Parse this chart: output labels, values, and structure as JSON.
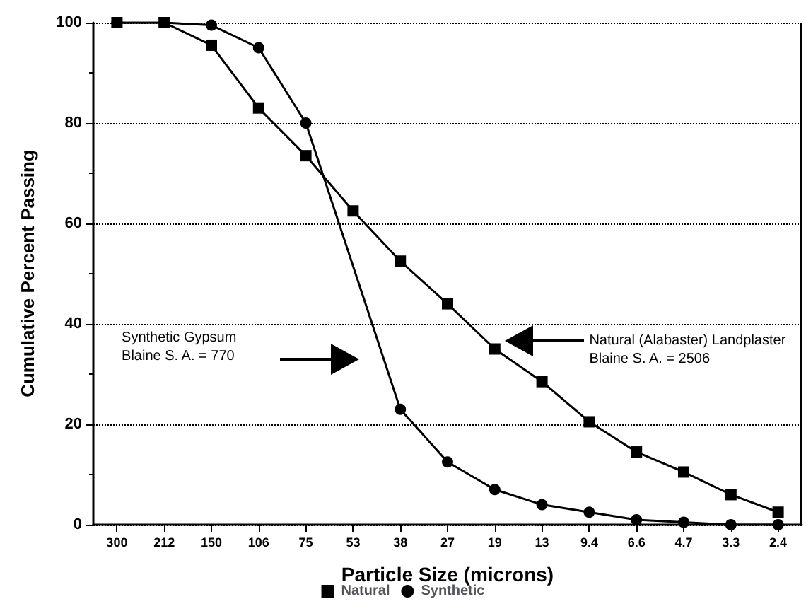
{
  "chart_data": {
    "type": "line",
    "xlabel": "Particle Size (microns)",
    "ylabel": "Cumulative Percent Passing",
    "categories": [
      "300",
      "212",
      "150",
      "106",
      "75",
      "53",
      "38",
      "27",
      "19",
      "13",
      "9.4",
      "6.6",
      "4.7",
      "3.3",
      "2.4"
    ],
    "series": [
      {
        "name": "Natural",
        "color": "#000000",
        "marker": "square",
        "values": [
          100,
          100,
          95.5,
          83,
          73.5,
          62.5,
          52.5,
          44,
          35,
          28.5,
          20.5,
          14.5,
          10.5,
          6,
          2.5
        ]
      },
      {
        "name": "Synthetic",
        "color": "#000000",
        "marker": "circle",
        "values": [
          100,
          100,
          99.5,
          95,
          80,
          null,
          23,
          12.5,
          7,
          4,
          2.5,
          1,
          0.5,
          0,
          0
        ]
      }
    ],
    "ylim": [
      0,
      100
    ],
    "yticks": [
      0,
      20,
      40,
      60,
      80,
      100
    ],
    "grid": "y",
    "legend": "bottom",
    "line_style": "solid",
    "annotations": [
      "Synthetic Gypsum\nBlaine S. A. = 770",
      "Natural (Alabaster) Landplaster\nBlaine S. A. = 2506"
    ]
  }
}
